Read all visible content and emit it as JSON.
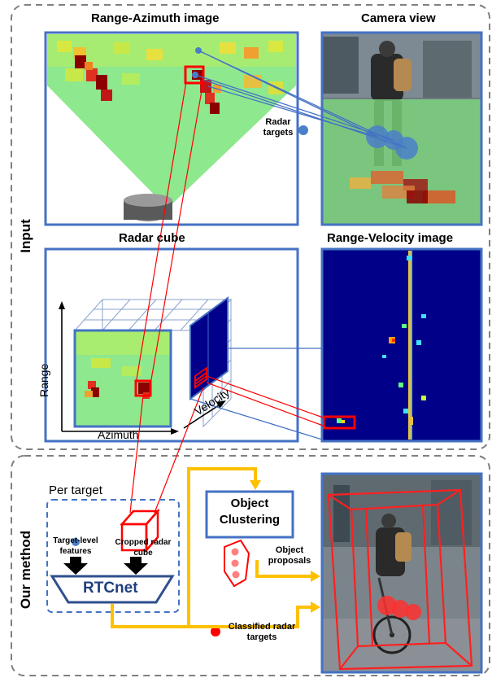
{
  "sections": {
    "input_label": "Input",
    "method_label": "Our method"
  },
  "panels": {
    "range_azimuth_title": "Range-Azimuth image",
    "camera_title": "Camera view",
    "radar_cube_title": "Radar cube",
    "range_velocity_title": "Range-Velocity image",
    "radar_targets_label": "Radar targets"
  },
  "cube_axes": {
    "range": "Range",
    "azimuth": "Azimuth",
    "velocity": "Velocity"
  },
  "method": {
    "per_target": "Per target",
    "target_level_features": "Target-level features",
    "cropped_radar_cube": "Cropped radar cube",
    "rtcnet": "RTCnet",
    "object_clustering_line1": "Object",
    "object_clustering_line2": "Clustering",
    "object_proposals": "Object proposals",
    "classified_radar_targets": "Classified radar targets"
  },
  "colors": {
    "frame_blue": "#4472c4",
    "arrow_yellow": "#ffc000",
    "link_red": "#ff0000",
    "target_blue": "#4a7fc9",
    "classified_red": "#ff0000",
    "heat_green": "#8ee88e",
    "rv_background": "#000088"
  }
}
